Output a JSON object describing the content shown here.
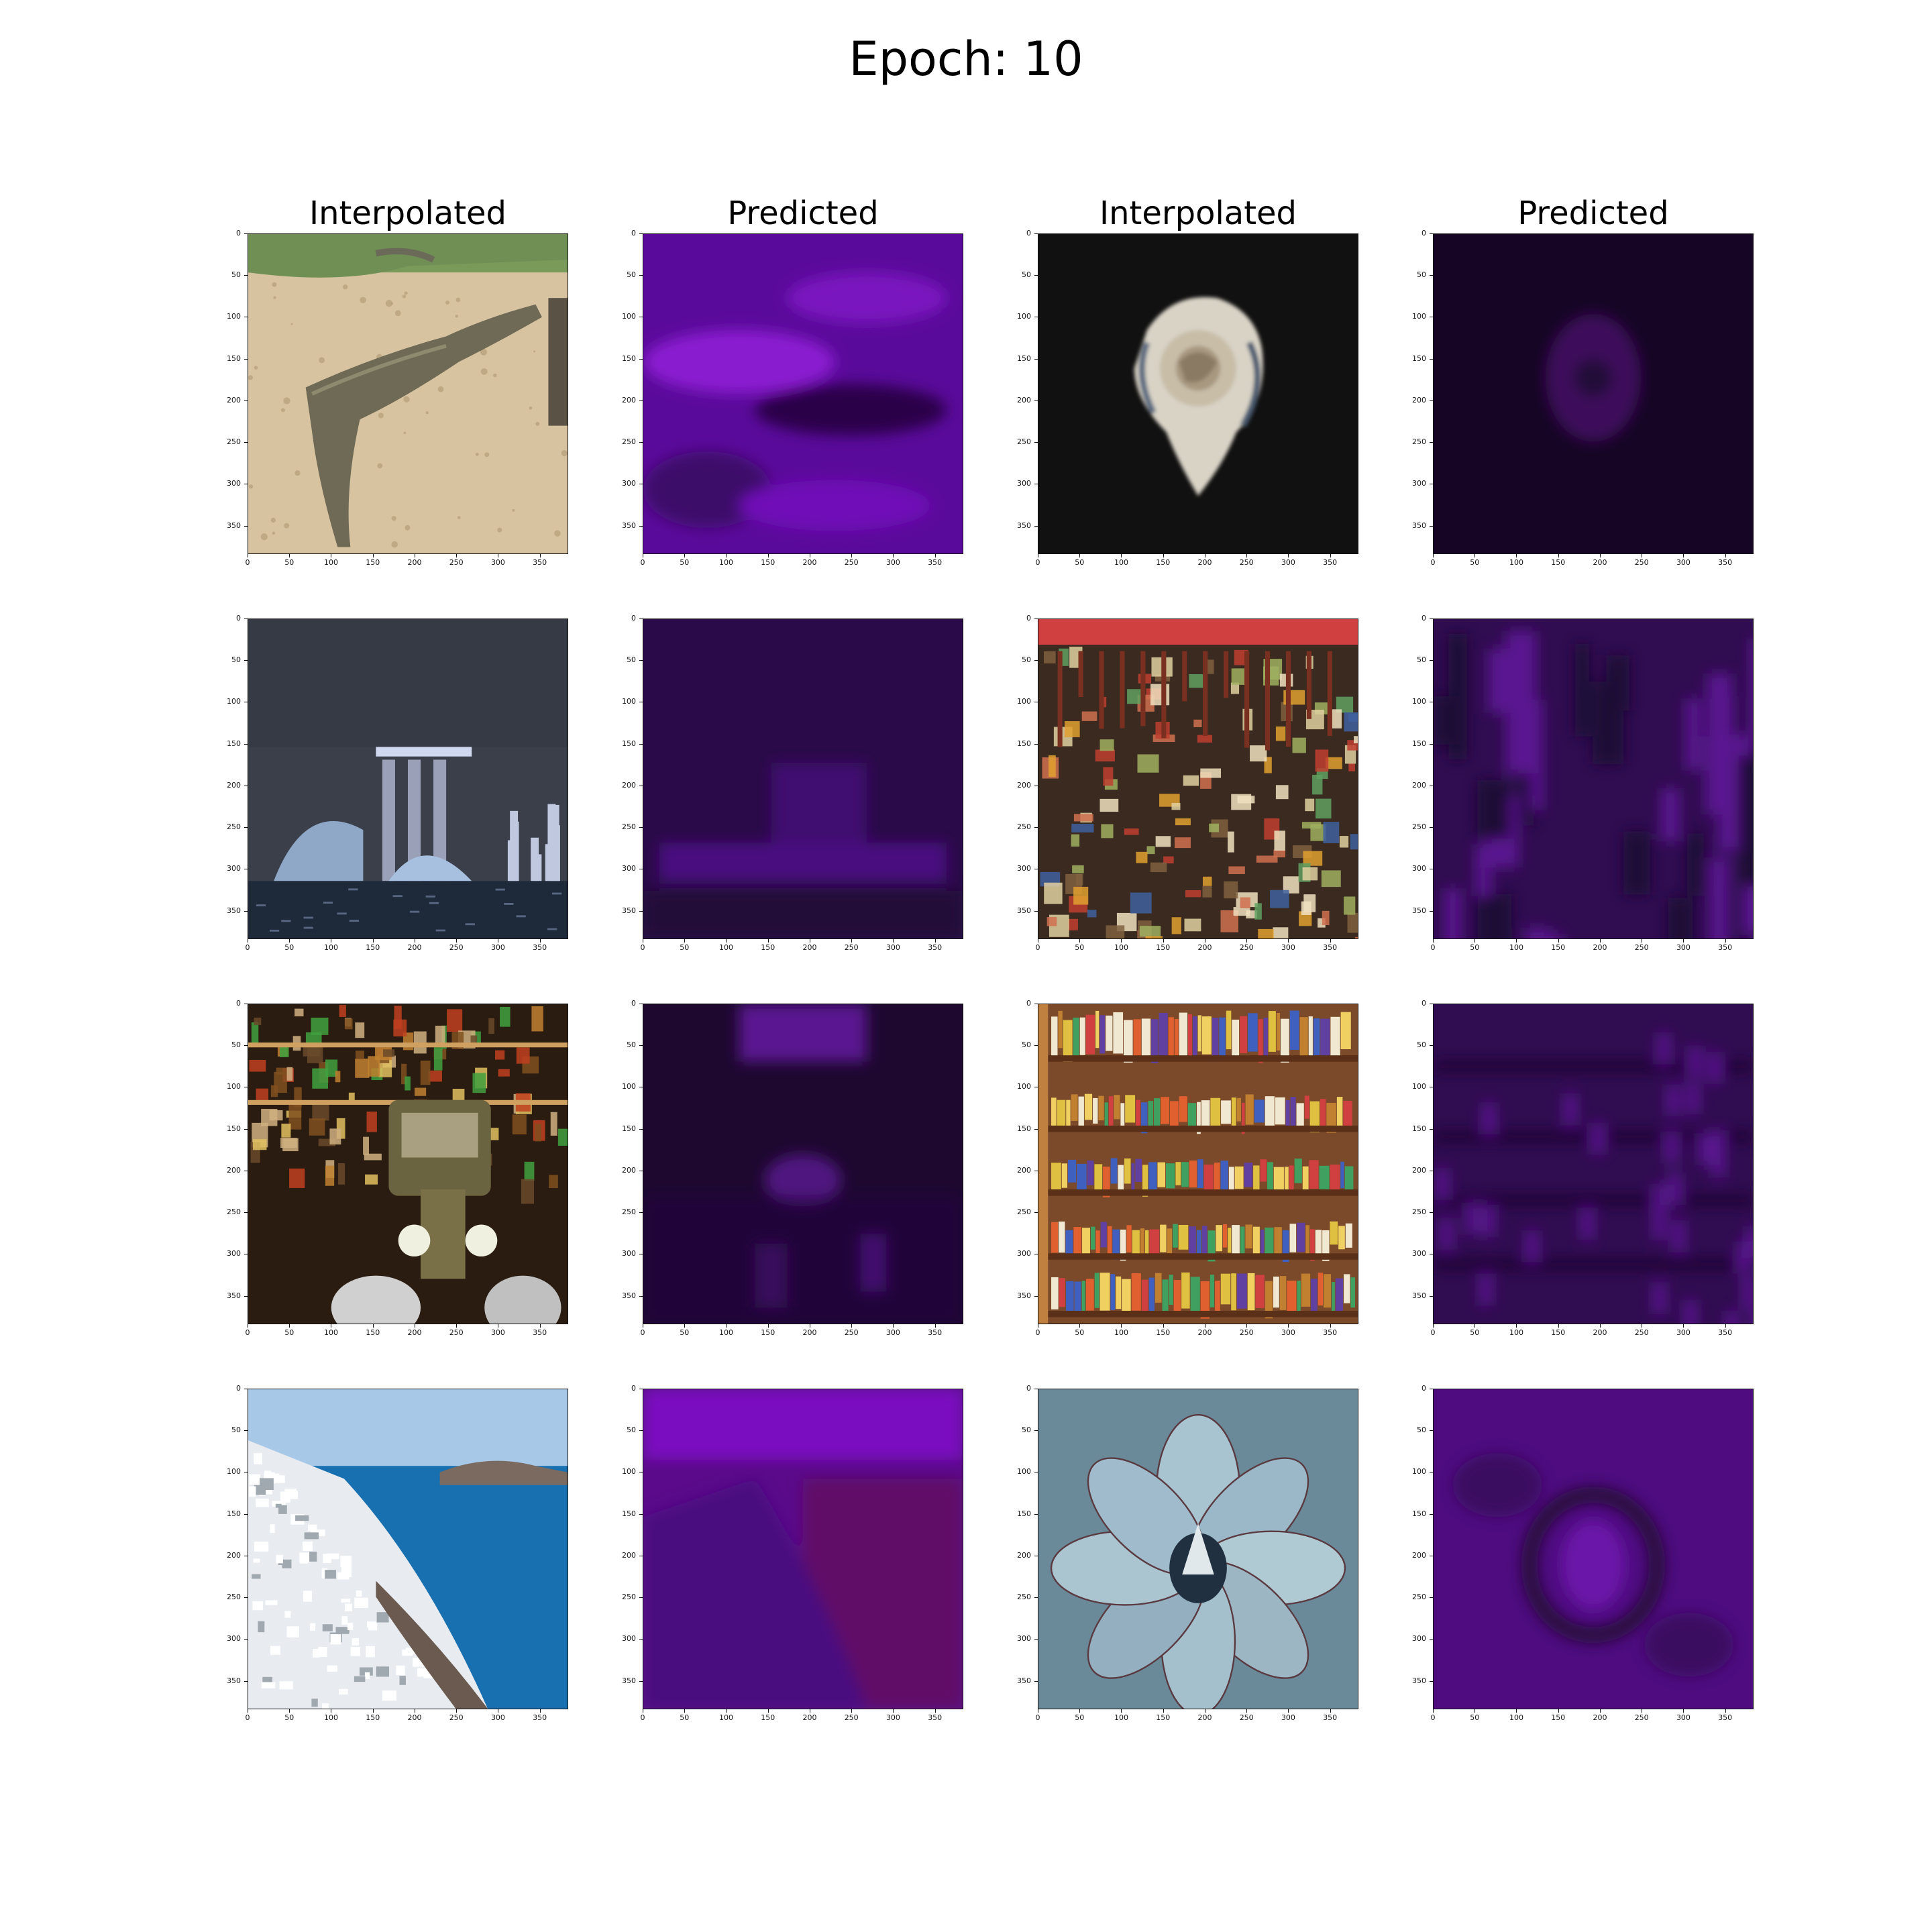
{
  "figure": {
    "title": "Epoch: 10",
    "column_titles": [
      "Interpolated",
      "Predicted",
      "Interpolated",
      "Predicted"
    ],
    "axis_ticks": {
      "x": [
        "0",
        "50",
        "100",
        "150",
        "200",
        "250",
        "300",
        "350"
      ],
      "y": [
        "0",
        "50",
        "100",
        "150",
        "200",
        "250",
        "300",
        "350"
      ],
      "values": [
        0,
        50,
        100,
        150,
        200,
        250,
        300,
        350
      ],
      "extent": 384
    },
    "panels": [
      {
        "scene": "crocodile",
        "kind": "interpolated"
      },
      {
        "scene": "crocodile",
        "kind": "predicted"
      },
      {
        "scene": "rose",
        "kind": "interpolated"
      },
      {
        "scene": "rose",
        "kind": "predicted"
      },
      {
        "scene": "city-skyline",
        "kind": "interpolated"
      },
      {
        "scene": "city-skyline",
        "kind": "predicted"
      },
      {
        "scene": "market-stall",
        "kind": "interpolated"
      },
      {
        "scene": "market-stall",
        "kind": "predicted"
      },
      {
        "scene": "vintage-car",
        "kind": "interpolated"
      },
      {
        "scene": "vintage-car",
        "kind": "predicted"
      },
      {
        "scene": "bookshelf",
        "kind": "interpolated"
      },
      {
        "scene": "bookshelf",
        "kind": "predicted"
      },
      {
        "scene": "santorini",
        "kind": "interpolated"
      },
      {
        "scene": "santorini",
        "kind": "predicted"
      },
      {
        "scene": "succulent",
        "kind": "interpolated"
      },
      {
        "scene": "succulent",
        "kind": "predicted"
      }
    ]
  }
}
